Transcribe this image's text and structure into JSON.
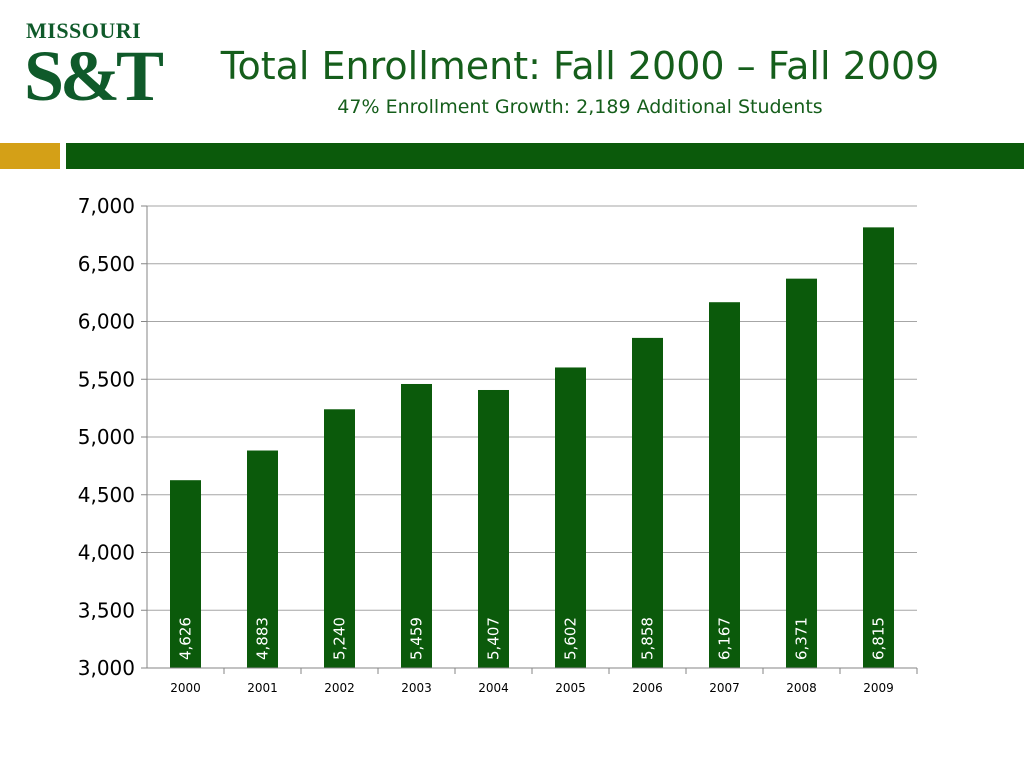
{
  "header": {
    "logo_top": "MISSOURI",
    "logo_bottom": "S&T",
    "title": "Total Enrollment:  Fall 2000 – Fall 2009",
    "subtitle": "47% Enrollment Growth: 2,189 Additional Students"
  },
  "colors": {
    "brand_green": "#0b5a0b",
    "accent_gold": "#d4a017",
    "title_green": "#155e1b"
  },
  "chart_data": {
    "type": "bar",
    "categories": [
      "2000",
      "2001",
      "2002",
      "2003",
      "2004",
      "2005",
      "2006",
      "2007",
      "2008",
      "2009"
    ],
    "values": [
      4626,
      4883,
      5240,
      5459,
      5407,
      5602,
      5858,
      6167,
      6371,
      6815
    ],
    "value_labels": [
      "4,626",
      "4,883",
      "5,240",
      "5,459",
      "5,407",
      "5,602",
      "5,858",
      "6,167",
      "6,371",
      "6,815"
    ],
    "y_ticks": [
      "3,000",
      "3,500",
      "4,000",
      "4,500",
      "5,000",
      "5,500",
      "6,000",
      "6,500",
      "7,000"
    ],
    "y_tick_values": [
      3000,
      3500,
      4000,
      4500,
      5000,
      5500,
      6000,
      6500,
      7000
    ],
    "ylim": [
      3000,
      7000
    ],
    "grid": true,
    "bar_color": "#0b5a0b",
    "data_label_orientation": "vertical"
  }
}
